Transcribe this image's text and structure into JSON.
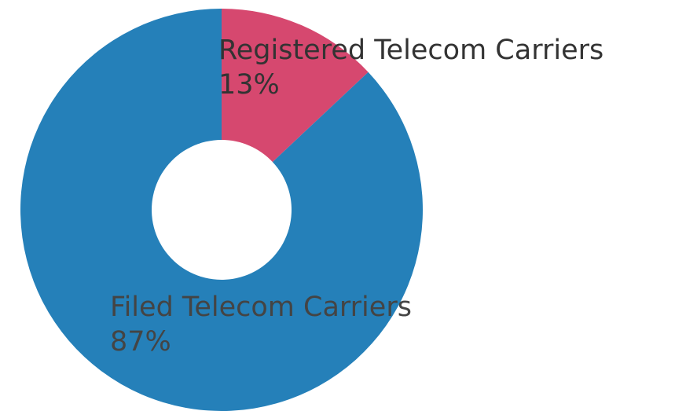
{
  "chart_data": {
    "type": "pie",
    "donut": true,
    "categories": [
      "Registered Telecom Carriers",
      "Filed Telecom Carriers"
    ],
    "values": [
      13,
      87
    ],
    "value_labels": [
      "13%",
      "87%"
    ],
    "colors": [
      "#d6486f",
      "#2580b9"
    ]
  }
}
